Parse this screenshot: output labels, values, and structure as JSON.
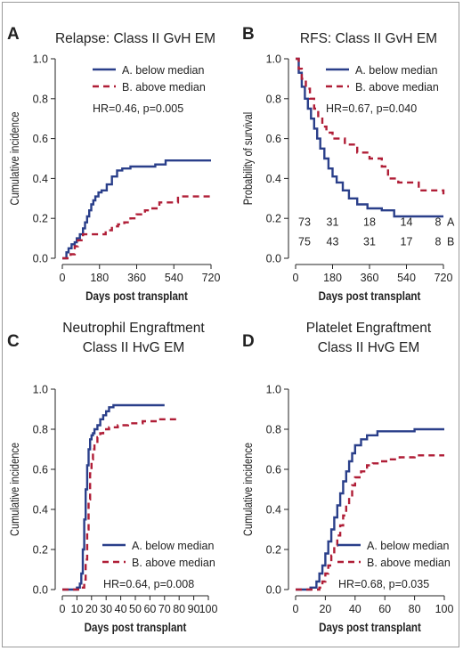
{
  "figure": {
    "colors": {
      "A": "#2a3f8a",
      "B": "#b01e37",
      "text": "#222222",
      "axis": "#222222"
    },
    "panels": [
      {
        "letter": "A",
        "chart_data": {
          "type": "line",
          "step": true,
          "title": [
            "Relapse: Class II GvH EM"
          ],
          "xlabel": "Days post transplant",
          "ylabel": "Cumulative incidence",
          "xlim": [
            0,
            720
          ],
          "ylim": [
            0,
            1.0
          ],
          "xticks": [
            0,
            180,
            360,
            540,
            720
          ],
          "yticks": [
            0.0,
            0.2,
            0.4,
            0.6,
            0.8,
            1.0
          ],
          "annotation": "HR=0.46, p=0.005",
          "legend_position": "top-right",
          "series": [
            {
              "key": "A",
              "name": "A. below median",
              "style": "solid",
              "x": [
                0,
                20,
                30,
                45,
                60,
                70,
                85,
                100,
                110,
                120,
                130,
                140,
                150,
                160,
                175,
                190,
                215,
                240,
                265,
                290,
                330,
                380,
                450,
                500,
                560,
                720
              ],
              "y": [
                0,
                0.03,
                0.05,
                0.07,
                0.08,
                0.1,
                0.12,
                0.15,
                0.18,
                0.21,
                0.24,
                0.27,
                0.29,
                0.31,
                0.33,
                0.34,
                0.37,
                0.41,
                0.44,
                0.45,
                0.46,
                0.46,
                0.47,
                0.49,
                0.49,
                0.49
              ]
            },
            {
              "key": "B",
              "name": "B. above median",
              "style": "dashed",
              "x": [
                0,
                40,
                60,
                75,
                100,
                120,
                210,
                240,
                270,
                300,
                330,
                360,
                400,
                430,
                470,
                560,
                720
              ],
              "y": [
                0,
                0.02,
                0.06,
                0.09,
                0.12,
                0.12,
                0.14,
                0.16,
                0.17,
                0.18,
                0.2,
                0.22,
                0.24,
                0.25,
                0.28,
                0.31,
                0.31
              ]
            }
          ]
        }
      },
      {
        "letter": "B",
        "chart_data": {
          "type": "line",
          "step": true,
          "title": [
            "RFS: Class II GvH EM"
          ],
          "xlabel": "Days post transplant",
          "ylabel": "Probability of survival",
          "xlim": [
            0,
            720
          ],
          "ylim": [
            0,
            1.0
          ],
          "xticks": [
            0,
            180,
            360,
            540,
            720
          ],
          "yticks": [
            0.0,
            0.2,
            0.4,
            0.6,
            0.8,
            1.0
          ],
          "annotation": "HR=0.67, p=0.040",
          "legend_position": "top-right",
          "series": [
            {
              "key": "A",
              "name": "A. below median",
              "style": "solid",
              "x": [
                0,
                15,
                30,
                45,
                60,
                75,
                90,
                105,
                120,
                140,
                160,
                180,
                200,
                230,
                260,
                300,
                350,
                420,
                480,
                720
              ],
              "y": [
                1.0,
                0.93,
                0.86,
                0.8,
                0.75,
                0.7,
                0.65,
                0.6,
                0.55,
                0.5,
                0.45,
                0.41,
                0.38,
                0.34,
                0.3,
                0.27,
                0.25,
                0.24,
                0.21,
                0.21
              ]
            },
            {
              "key": "B",
              "name": "B. above median",
              "style": "dashed",
              "x": [
                0,
                15,
                30,
                50,
                70,
                90,
                110,
                130,
                150,
                180,
                240,
                300,
                360,
                420,
                450,
                500,
                600,
                720
              ],
              "y": [
                1.0,
                0.95,
                0.9,
                0.85,
                0.8,
                0.75,
                0.7,
                0.66,
                0.63,
                0.6,
                0.57,
                0.53,
                0.5,
                0.46,
                0.4,
                0.38,
                0.34,
                0.32
              ]
            }
          ],
          "at_risk": {
            "x": [
              0,
              180,
              360,
              540,
              720
            ],
            "A": [
              "73",
              "31",
              "18",
              "14",
              "8"
            ],
            "B": [
              "75",
              "43",
              "31",
              "17",
              "8"
            ],
            "labels": [
              "A",
              "B"
            ]
          }
        }
      },
      {
        "letter": "C",
        "chart_data": {
          "type": "line",
          "step": true,
          "title": [
            "Neutrophil Engraftment",
            "Class II HvG EM"
          ],
          "xlabel": "Days post transplant",
          "ylabel": "Cumulative incidence",
          "xlim": [
            0,
            100
          ],
          "ylim": [
            0,
            1.0
          ],
          "xticks": [
            0,
            10,
            20,
            30,
            40,
            50,
            60,
            70,
            80,
            90,
            100
          ],
          "yticks": [
            0.0,
            0.2,
            0.4,
            0.6,
            0.8,
            1.0
          ],
          "annotation": "HR=0.64, p=0.008",
          "legend_position": "bottom-right",
          "series": [
            {
              "key": "A",
              "name": "A. below median",
              "style": "solid",
              "x": [
                0,
                10,
                12,
                13,
                14,
                15,
                16,
                17,
                18,
                19,
                20,
                21,
                22,
                24,
                26,
                28,
                30,
                32,
                35,
                70
              ],
              "y": [
                0,
                0.01,
                0.03,
                0.08,
                0.2,
                0.35,
                0.5,
                0.62,
                0.7,
                0.75,
                0.77,
                0.78,
                0.8,
                0.82,
                0.85,
                0.87,
                0.89,
                0.91,
                0.92,
                0.92
              ]
            },
            {
              "key": "B",
              "name": "B. above median",
              "style": "dashed",
              "x": [
                0,
                13,
                15,
                16,
                17,
                18,
                19,
                20,
                21,
                22,
                24,
                26,
                28,
                32,
                38,
                45,
                55,
                65,
                78
              ],
              "y": [
                0,
                0.01,
                0.05,
                0.15,
                0.3,
                0.45,
                0.58,
                0.65,
                0.7,
                0.73,
                0.76,
                0.78,
                0.8,
                0.81,
                0.82,
                0.83,
                0.84,
                0.85,
                0.85
              ]
            }
          ]
        }
      },
      {
        "letter": "D",
        "chart_data": {
          "type": "line",
          "step": true,
          "title": [
            "Platelet Engraftment",
            "Class II HvG EM"
          ],
          "xlabel": "Days post transplant",
          "ylabel": "Cumulative incidence",
          "xlim": [
            0,
            100
          ],
          "ylim": [
            0,
            1.0
          ],
          "xticks": [
            0,
            20,
            40,
            60,
            80,
            100
          ],
          "yticks": [
            0.0,
            0.2,
            0.4,
            0.6,
            0.8,
            1.0
          ],
          "annotation": "HR=0.68, p=0.035",
          "legend_position": "bottom-right",
          "series": [
            {
              "key": "A",
              "name": "A. below median",
              "style": "solid",
              "x": [
                0,
                10,
                14,
                16,
                18,
                20,
                22,
                24,
                26,
                28,
                30,
                32,
                34,
                36,
                38,
                40,
                44,
                48,
                55,
                80,
                100
              ],
              "y": [
                0,
                0.01,
                0.04,
                0.08,
                0.12,
                0.18,
                0.24,
                0.3,
                0.36,
                0.42,
                0.48,
                0.54,
                0.59,
                0.64,
                0.68,
                0.72,
                0.75,
                0.77,
                0.79,
                0.8,
                0.8
              ]
            },
            {
              "key": "B",
              "name": "B. above median",
              "style": "dashed",
              "x": [
                0,
                16,
                18,
                20,
                22,
                24,
                26,
                28,
                30,
                32,
                34,
                36,
                38,
                40,
                44,
                48,
                52,
                56,
                62,
                70,
                80,
                100
              ],
              "y": [
                0,
                0.01,
                0.04,
                0.08,
                0.12,
                0.17,
                0.22,
                0.27,
                0.32,
                0.37,
                0.42,
                0.47,
                0.52,
                0.56,
                0.59,
                0.62,
                0.63,
                0.64,
                0.65,
                0.66,
                0.67,
                0.67
              ]
            }
          ]
        }
      }
    ]
  }
}
